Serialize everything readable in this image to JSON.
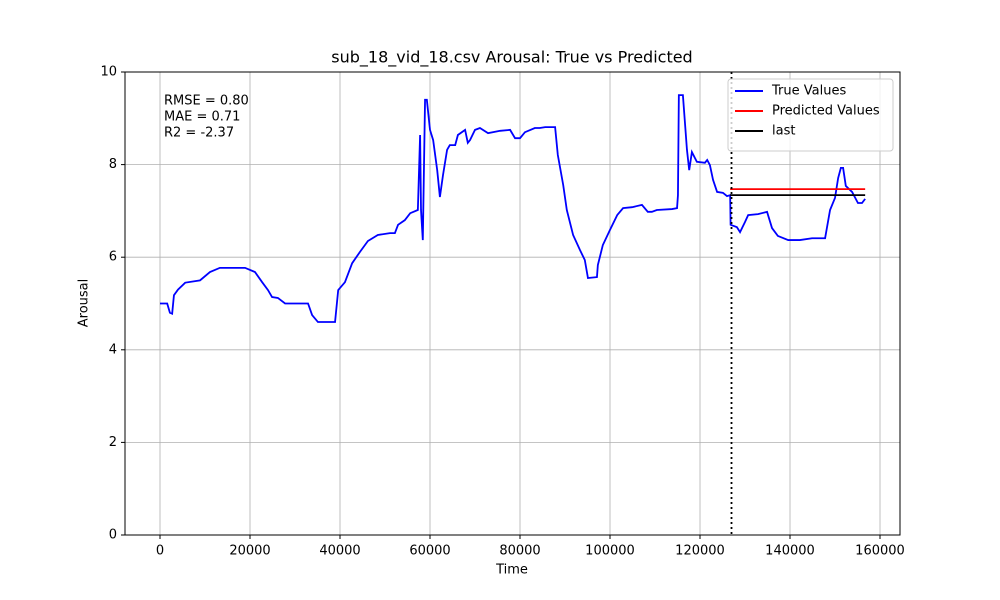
{
  "chart_data": {
    "type": "line",
    "title": "sub_18_vid_18.csv Arousal: True vs Predicted",
    "xlabel": "Time",
    "ylabel": "Arousal",
    "xlim": [
      -7778,
      164444
    ],
    "ylim": [
      0,
      10
    ],
    "xticks": [
      0,
      20000,
      40000,
      60000,
      80000,
      100000,
      120000,
      140000,
      160000
    ],
    "yticks": [
      0,
      2,
      4,
      6,
      8,
      10
    ],
    "grid": true,
    "legend": "upper right",
    "annotations": [
      "RMSE = 0.80",
      "MAE = 0.71",
      "R2 = -2.37"
    ],
    "vline": {
      "x": 127000,
      "color": "#000000",
      "style": "dotted"
    },
    "series": [
      {
        "name": "True Values",
        "color": "#0000ff",
        "x": [
          0,
          1600,
          2200,
          2700,
          3100,
          4000,
          5600,
          8900,
          11100,
          13300,
          18900,
          21100,
          22700,
          24000,
          24900,
          26200,
          27800,
          32900,
          33800,
          35100,
          38900,
          39600,
          41100,
          42700,
          44400,
          46200,
          48400,
          51100,
          52200,
          52900,
          54400,
          55600,
          57300,
          57800,
          58000,
          58400,
          58900,
          59300,
          60000,
          60700,
          61600,
          62200,
          62900,
          63800,
          64400,
          65600,
          66200,
          67800,
          68400,
          68900,
          70000,
          71100,
          72900,
          75600,
          77800,
          78900,
          80000,
          81100,
          83300,
          84400,
          85600,
          87800,
          88400,
          89600,
          90400,
          91800,
          93300,
          94400,
          95100,
          97100,
          97300,
          98400,
          100000,
          101600,
          102900,
          104900,
          107100,
          108400,
          109300,
          110400,
          113800,
          114900,
          115100,
          115300,
          116200,
          117100,
          117600,
          118200,
          119300,
          121100,
          121600,
          122200,
          122900,
          123800,
          125100,
          126000,
          126700,
          126800,
          128200,
          128900,
          130000,
          130700,
          132900,
          134900,
          136000,
          137300,
          139600,
          142200,
          144900,
          147800,
          148900,
          150000,
          150700,
          151300,
          151800,
          152400,
          153800,
          155100,
          156000,
          156700
        ],
        "values": [
          5.0,
          5.0,
          4.8,
          4.78,
          5.18,
          5.3,
          5.45,
          5.5,
          5.68,
          5.77,
          5.77,
          5.68,
          5.46,
          5.29,
          5.14,
          5.12,
          5.0,
          5.0,
          4.75,
          4.6,
          4.6,
          5.29,
          5.46,
          5.87,
          6.11,
          6.35,
          6.48,
          6.52,
          6.52,
          6.7,
          6.8,
          6.95,
          7.02,
          8.64,
          7.02,
          6.37,
          9.4,
          9.4,
          8.75,
          8.53,
          7.88,
          7.3,
          7.78,
          8.32,
          8.42,
          8.42,
          8.64,
          8.75,
          8.47,
          8.53,
          8.75,
          8.79,
          8.68,
          8.73,
          8.75,
          8.57,
          8.57,
          8.7,
          8.79,
          8.79,
          8.81,
          8.81,
          8.21,
          7.56,
          7.02,
          6.48,
          6.16,
          5.94,
          5.55,
          5.57,
          5.83,
          6.26,
          6.59,
          6.91,
          7.06,
          7.08,
          7.13,
          6.98,
          6.98,
          7.02,
          7.04,
          7.06,
          7.34,
          9.5,
          9.5,
          8.32,
          7.88,
          8.27,
          8.06,
          8.04,
          8.1,
          7.99,
          7.67,
          7.41,
          7.39,
          7.32,
          7.34,
          6.7,
          6.65,
          6.54,
          6.76,
          6.91,
          6.93,
          6.98,
          6.63,
          6.46,
          6.37,
          6.37,
          6.41,
          6.41,
          7.02,
          7.28,
          7.71,
          7.93,
          7.93,
          7.54,
          7.41,
          7.17,
          7.17,
          7.26
        ]
      },
      {
        "name": "Predicted Values",
        "color": "#ff0000",
        "x": [
          126700,
          156700
        ],
        "values": [
          7.47,
          7.47
        ]
      },
      {
        "name": "last",
        "color": "#000000",
        "x": [
          126700,
          156700
        ],
        "values": [
          7.34,
          7.34
        ]
      }
    ]
  }
}
